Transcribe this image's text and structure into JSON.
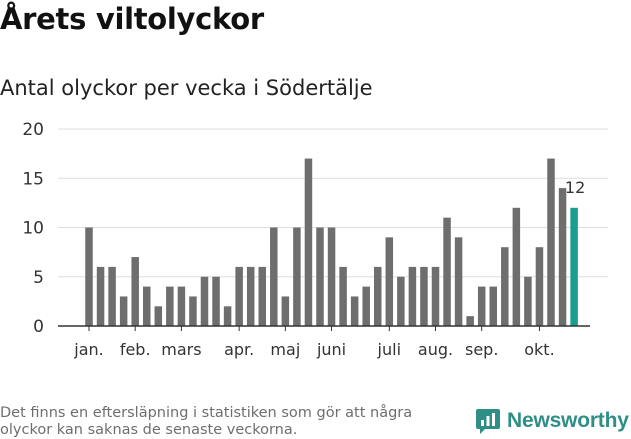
{
  "title": "Årets viltolyckor",
  "subtitle": "Antal olyckor per vecka i Södertälje",
  "footnote": "Det finns en eftersläpning i statistiken som gör att några olyckor kan saknas de senaste veckorna.",
  "brand": {
    "name": "Newsworthy",
    "color": "#2f8f86",
    "logo_icon": "newsworthy-logo-icon"
  },
  "colors": {
    "bar": "#6e6e6e",
    "highlight": "#1a9e8f",
    "grid": "#dddddd",
    "axis": "#333333",
    "text": "#333333"
  },
  "chart_data": {
    "type": "bar",
    "title": "Antal olyckor per vecka i Södertälje",
    "xlabel": "",
    "ylabel": "",
    "ylim": [
      0,
      20
    ],
    "yticks": [
      0,
      5,
      10,
      15,
      20
    ],
    "grid": true,
    "x": [
      1,
      2,
      3,
      4,
      5,
      6,
      7,
      8,
      9,
      10,
      11,
      12,
      13,
      14,
      15,
      16,
      17,
      18,
      19,
      20,
      21,
      22,
      23,
      24,
      25,
      26,
      27,
      28,
      29,
      30,
      31,
      32,
      33,
      34,
      35,
      36,
      37,
      38,
      39,
      40,
      41,
      42,
      43
    ],
    "values": [
      10,
      6,
      6,
      3,
      7,
      4,
      2,
      4,
      4,
      3,
      5,
      5,
      2,
      6,
      6,
      6,
      10,
      3,
      10,
      17,
      10,
      10,
      6,
      3,
      4,
      6,
      9,
      5,
      6,
      6,
      6,
      11,
      9,
      1,
      4,
      4,
      8,
      12,
      5,
      8,
      17,
      14,
      12
    ],
    "highlight_index": 42,
    "highlight_label": "12",
    "month_labels": [
      {
        "label": "jan.",
        "week": 1
      },
      {
        "label": "feb.",
        "week": 5
      },
      {
        "label": "mars",
        "week": 9
      },
      {
        "label": "apr.",
        "week": 14
      },
      {
        "label": "maj",
        "week": 18
      },
      {
        "label": "juni",
        "week": 22
      },
      {
        "label": "juli",
        "week": 27
      },
      {
        "label": "aug.",
        "week": 31
      },
      {
        "label": "sep.",
        "week": 35
      },
      {
        "label": "okt.",
        "week": 40
      }
    ]
  }
}
